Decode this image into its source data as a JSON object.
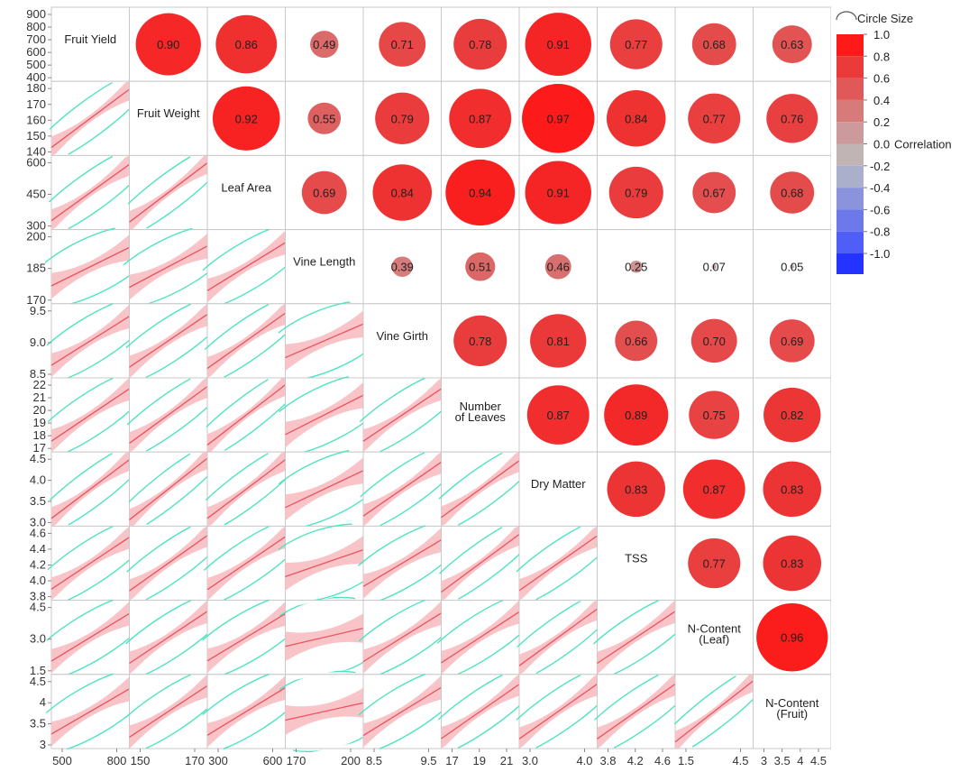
{
  "chart_data": {
    "type": "scatterplot-matrix",
    "variables": [
      "Fruit Yield",
      "Fruit Weight",
      "Leaf Area",
      "Vine Length",
      "Vine Girth",
      "Number of Leaves",
      "Dry Matter",
      "TSS",
      "N-Content (Leaf)",
      "N-Content (Fruit)"
    ],
    "labels": [
      [
        "Fruit Yield"
      ],
      [
        "Fruit Weight"
      ],
      [
        "Leaf Area"
      ],
      [
        "Vine Length"
      ],
      [
        "Vine Girth"
      ],
      [
        "Number",
        "of Leaves"
      ],
      [
        "Dry Matter"
      ],
      [
        "TSS"
      ],
      [
        "N-Content",
        "(Leaf)"
      ],
      [
        "N-Content",
        "(Fruit)"
      ]
    ],
    "y_ticks": [
      [
        "400",
        "500",
        "600",
        "700",
        "800",
        "900"
      ],
      [
        "140",
        "150",
        "160",
        "170",
        "180"
      ],
      [
        "300",
        "450",
        "600"
      ],
      [
        "170",
        "185",
        "200"
      ],
      [
        "8.5",
        "9.0",
        "9.5"
      ],
      [
        "17",
        "18",
        "19",
        "20",
        "21",
        "22"
      ],
      [
        "3.0",
        "3.5",
        "4.0",
        "4.5"
      ],
      [
        "3.8",
        "4.0",
        "4.2",
        "4.4",
        "4.6"
      ],
      [
        "1.5",
        "3.0",
        "4.5"
      ],
      [
        "3",
        "3.5",
        "4",
        "4.5"
      ]
    ],
    "x_ticks": [
      [
        "500",
        "800"
      ],
      [
        "150",
        "170"
      ],
      [
        "300",
        "600"
      ],
      [
        "170",
        "200"
      ],
      [
        "8.5",
        "9.5"
      ],
      [
        "17",
        "19",
        "21"
      ],
      [
        "3.0",
        "4.0"
      ],
      [
        "3.8",
        "4.2",
        "4.6"
      ],
      [
        "1.5",
        "4.5"
      ],
      [
        "3",
        "3.5",
        "4",
        "4.5"
      ]
    ],
    "correlations": [
      [
        1,
        0.9,
        0.86,
        0.49,
        0.71,
        0.78,
        0.91,
        0.77,
        0.68,
        0.63
      ],
      [
        0.9,
        1,
        0.92,
        0.55,
        0.79,
        0.87,
        0.97,
        0.84,
        0.77,
        0.76
      ],
      [
        0.86,
        0.92,
        1,
        0.69,
        0.84,
        0.94,
        0.91,
        0.79,
        0.67,
        0.68
      ],
      [
        0.49,
        0.55,
        0.69,
        1,
        0.39,
        0.51,
        0.46,
        0.25,
        0.07,
        0.05
      ],
      [
        0.71,
        0.79,
        0.84,
        0.39,
        1,
        0.78,
        0.81,
        0.66,
        0.7,
        0.69
      ],
      [
        0.78,
        0.87,
        0.94,
        0.51,
        0.78,
        1,
        0.87,
        0.89,
        0.75,
        0.82
      ],
      [
        0.91,
        0.97,
        0.91,
        0.46,
        0.81,
        0.87,
        1,
        0.83,
        0.87,
        0.83
      ],
      [
        0.77,
        0.84,
        0.79,
        0.25,
        0.66,
        0.89,
        0.83,
        1,
        0.77,
        0.83
      ],
      [
        0.68,
        0.77,
        0.67,
        0.07,
        0.7,
        0.75,
        0.87,
        0.77,
        1,
        0.96
      ],
      [
        0.63,
        0.76,
        0.68,
        0.05,
        0.69,
        0.82,
        0.83,
        0.83,
        0.96,
        1
      ]
    ],
    "upper_values": [
      [
        "0.90",
        "0.86",
        "0.49",
        "0.71",
        "0.78",
        "0.91",
        "0.77",
        "0.68",
        "0.63"
      ],
      [
        "0.92",
        "0.55",
        "0.79",
        "0.87",
        "0.97",
        "0.84",
        "0.77",
        "0.76"
      ],
      [
        "0.69",
        "0.84",
        "0.94",
        "0.91",
        "0.79",
        "0.67",
        "0.68"
      ],
      [
        "0.39",
        "0.51",
        "0.46",
        "0.25",
        "0.07",
        "0.05"
      ],
      [
        "0.78",
        "0.81",
        "0.66",
        "0.70",
        "0.69"
      ],
      [
        "0.87",
        "0.89",
        "0.75",
        "0.82"
      ],
      [
        "0.83",
        "0.87",
        "0.83"
      ],
      [
        "0.77",
        "0.83"
      ],
      [
        "0.96"
      ]
    ],
    "legend": {
      "circle_size_label": "Circle Size",
      "correlation_label": "Correlation",
      "scale": [
        "1.0",
        "0.8",
        "0.6",
        "0.4",
        "0.2",
        "0.0",
        "-0.2",
        "-0.4",
        "-0.6",
        "-0.8",
        "-1.0"
      ],
      "colors": [
        "#ff1a1a",
        "#ea3a3a",
        "#e05858",
        "#d67a7a",
        "#cc9a9a",
        "#c0b4b4",
        "#aab0cc",
        "#8a93dc",
        "#6d79ea",
        "#4f5ef6",
        "#2433ff"
      ]
    },
    "colors": {
      "fit_line": "#e8535e",
      "confidence_band": "#f9c4c8",
      "density_ellipse": "#4fe3c1",
      "cell_border": "#c9c9c9"
    }
  }
}
